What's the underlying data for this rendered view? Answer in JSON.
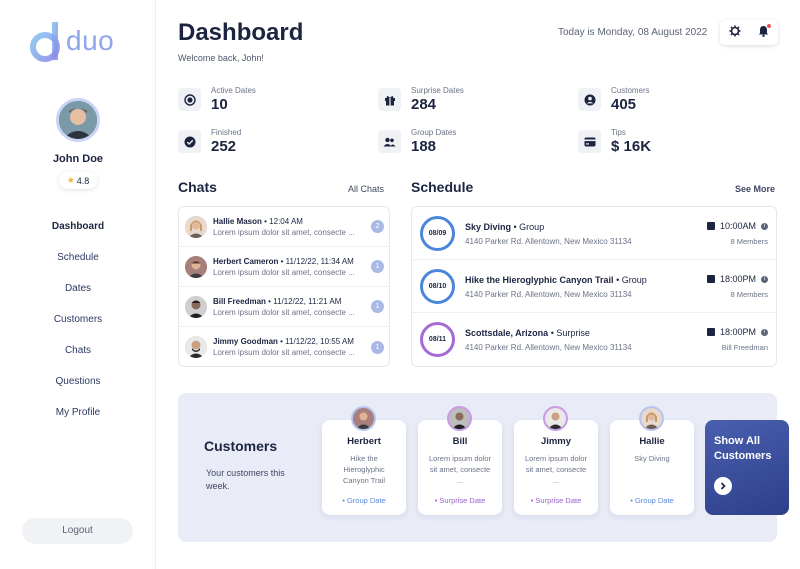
{
  "brand": {
    "name": "duo"
  },
  "user": {
    "name": "John Doe",
    "rating": "4.8"
  },
  "nav": [
    {
      "label": "Dashboard",
      "active": true
    },
    {
      "label": "Schedule"
    },
    {
      "label": "Dates"
    },
    {
      "label": "Customers"
    },
    {
      "label": "Chats"
    },
    {
      "label": "Questions"
    },
    {
      "label": "My Profile"
    }
  ],
  "logout_label": "Logout",
  "header": {
    "title": "Dashboard",
    "welcome": "Welcome back, John!",
    "date": "Today is Monday, 08 August 2022"
  },
  "stats": [
    {
      "label": "Active Dates",
      "value": "10",
      "icon": "target-icon"
    },
    {
      "label": "Surprise Dates",
      "value": "284",
      "icon": "gift-icon"
    },
    {
      "label": "Customers",
      "value": "405",
      "icon": "user-icon"
    },
    {
      "label": "Finished",
      "value": "252",
      "icon": "check-icon"
    },
    {
      "label": "Group Dates",
      "value": "188",
      "icon": "group-icon"
    },
    {
      "label": "Tips",
      "value": "$ 16K",
      "icon": "card-icon"
    }
  ],
  "chats": {
    "title": "Chats",
    "link": "All Chats",
    "items": [
      {
        "name": "Hallie Mason",
        "time": "• 12:04 AM",
        "message": "Lorem ipsum dolor sit amet, consecte ...",
        "badge": "2"
      },
      {
        "name": "Herbert Cameron",
        "time": "• 11/12/22, 11:34 AM",
        "message": "Lorem ipsum dolor sit amet, consecte ...",
        "badge": "1"
      },
      {
        "name": "Bill Freedman",
        "time": "• 11/12/22, 11:21 AM",
        "message": "Lorem ipsum dolor sit amet, consecte ...",
        "badge": "1"
      },
      {
        "name": "Jimmy Goodman",
        "time": "• 11/12/22, 10:55 AM",
        "message": "Lorem ipsum dolor sit amet, consecte ...",
        "badge": "1"
      }
    ]
  },
  "schedule": {
    "title": "Schedule",
    "link": "See More",
    "items": [
      {
        "date": "08/09",
        "title": "Sky Diving",
        "type": "• Group",
        "address": "4140 Parker Rd. Allentown, New Mexico 31134",
        "time": "10:00AM",
        "sub": "8 Members",
        "kind": "group"
      },
      {
        "date": "08/10",
        "title": "Hike the Hieroglyphic Canyon Trail",
        "type": "• Group",
        "address": "4140 Parker Rd. Allentown, New Mexico 31134",
        "time": "18:00PM",
        "sub": "8 Members",
        "kind": "group"
      },
      {
        "date": "08/11",
        "title": "Scottsdale, Arizona",
        "type": "• Surprise",
        "address": "4140 Parker Rd. Allentown, New Mexico 31134",
        "time": "18:00PM",
        "sub": "Bill Freedman",
        "kind": "surprise"
      }
    ]
  },
  "customers": {
    "title": "Customers",
    "subtitle": "Your customers this week.",
    "items": [
      {
        "name": "Herbert",
        "desc": "Hike the Hieroglyphic Canyon Trail",
        "type": "• Group Date",
        "kind": "group"
      },
      {
        "name": "Bill",
        "desc": "Lorem ipsum dolor sit amet, consecte ...",
        "type": "• Surprise Date",
        "kind": "surprise"
      },
      {
        "name": "Jimmy",
        "desc": "Lorem ipsum dolor sit amet, consecte ...",
        "type": "• Surprise Date",
        "kind": "surprise"
      },
      {
        "name": "Hallie",
        "desc": "Sky Diving",
        "type": "• Group Date",
        "kind": "group"
      }
    ],
    "show_all": "Show All Customers"
  },
  "colors": {
    "primary_dark": "#1c2440",
    "group_accent": "#4a86d9",
    "surprise_accent": "#a66ad6",
    "badge": "#aab8e6",
    "panel_bg": "#e9ebf7"
  }
}
